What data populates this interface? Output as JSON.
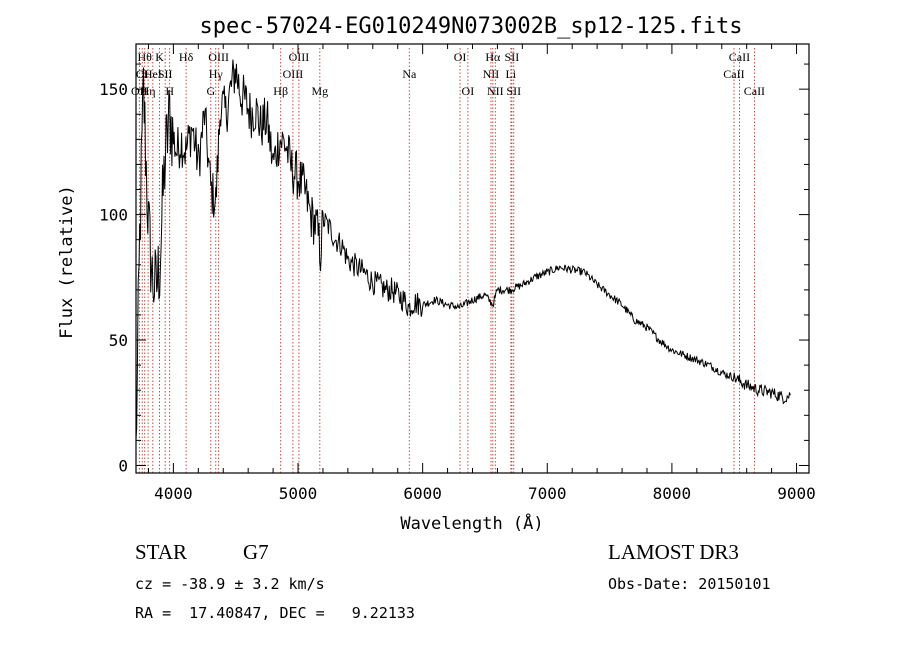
{
  "chart_data": {
    "type": "line",
    "title": "spec-57024-EG010249N073002B_sp12-125.fits",
    "xlabel": "Wavelength (Å)",
    "ylabel": "Flux (relative)",
    "xlim": [
      3700,
      9100
    ],
    "ylim": [
      -3,
      168
    ],
    "xticks": [
      4000,
      5000,
      6000,
      7000,
      8000,
      9000
    ],
    "yticks": [
      0,
      50,
      100,
      150
    ],
    "series": [
      {
        "name": "flux",
        "x": [
          3700,
          3730,
          3760,
          3800,
          3830,
          3860,
          3890,
          3930,
          3970,
          4000,
          4030,
          4060,
          4100,
          4150,
          4200,
          4250,
          4300,
          4340,
          4380,
          4420,
          4460,
          4500,
          4540,
          4580,
          4620,
          4660,
          4700,
          4750,
          4800,
          4850,
          4900,
          4950,
          5000,
          5050,
          5100,
          5150,
          5180,
          5200,
          5250,
          5300,
          5350,
          5400,
          5450,
          5500,
          5550,
          5600,
          5650,
          5700,
          5750,
          5800,
          5850,
          5890,
          5930,
          6000,
          6100,
          6200,
          6300,
          6400,
          6500,
          6563,
          6600,
          6700,
          6800,
          6900,
          7000,
          7100,
          7200,
          7300,
          7400,
          7500,
          7600,
          7700,
          7800,
          7900,
          8000,
          8100,
          8200,
          8300,
          8400,
          8500,
          8600,
          8700,
          8800,
          8900,
          8950
        ],
        "y": [
          5,
          90,
          150,
          95,
          75,
          70,
          80,
          120,
          140,
          130,
          125,
          130,
          125,
          135,
          120,
          140,
          110,
          105,
          145,
          140,
          150,
          158,
          148,
          145,
          140,
          142,
          135,
          138,
          120,
          130,
          128,
          118,
          115,
          110,
          100,
          95,
          85,
          98,
          95,
          90,
          88,
          82,
          80,
          78,
          76,
          73,
          72,
          70,
          70,
          68,
          66,
          63,
          65,
          64,
          66,
          64,
          63,
          66,
          68,
          64,
          70,
          70,
          72,
          75,
          77,
          79,
          78,
          77,
          72,
          68,
          64,
          58,
          55,
          50,
          46,
          44,
          42,
          40,
          37,
          35,
          32,
          30,
          29,
          27,
          28
        ]
      }
    ],
    "lines": [
      {
        "wl": 3727,
        "labels": [
          "OII"
        ],
        "row": 3
      },
      {
        "wl": 3750,
        "labels": [
          "OI"
        ],
        "row": 2
      },
      {
        "wl": 3770,
        "labels": [
          "Hθ"
        ],
        "row": 1
      },
      {
        "wl": 3797,
        "labels": [
          "Hη"
        ],
        "row": 3
      },
      {
        "wl": 3835,
        "labels": [
          "HeI"
        ],
        "row": 2
      },
      {
        "wl": 3889,
        "labels": [
          "K"
        ],
        "row": 1
      },
      {
        "wl": 3934,
        "labels": [
          "SII"
        ],
        "row": 2
      },
      {
        "wl": 3970,
        "labels": [
          "H"
        ],
        "row": 3
      },
      {
        "wl": 4102,
        "labels": [
          "Hδ"
        ],
        "row": 1
      },
      {
        "wl": 4300,
        "labels": [
          "G"
        ],
        "row": 3
      },
      {
        "wl": 4340,
        "labels": [
          "Hγ"
        ],
        "row": 2
      },
      {
        "wl": 4363,
        "labels": [
          "OIII"
        ],
        "row": 1
      },
      {
        "wl": 4861,
        "labels": [
          "Hβ"
        ],
        "row": 3
      },
      {
        "wl": 4959,
        "labels": [
          "OIII"
        ],
        "row": 2
      },
      {
        "wl": 5007,
        "labels": [
          "OIII"
        ],
        "row": 1
      },
      {
        "wl": 5175,
        "labels": [
          "Mg"
        ],
        "row": 3
      },
      {
        "wl": 5893,
        "labels": [
          "Na"
        ],
        "row": 2
      },
      {
        "wl": 6300,
        "labels": [
          "OI"
        ],
        "row": 1
      },
      {
        "wl": 6363,
        "labels": [
          "OI"
        ],
        "row": 3
      },
      {
        "wl": 6548,
        "labels": [
          "NII"
        ],
        "row": 2
      },
      {
        "wl": 6563,
        "labels": [
          "Hα"
        ],
        "row": 1
      },
      {
        "wl": 6583,
        "labels": [
          "NII"
        ],
        "row": 3
      },
      {
        "wl": 6708,
        "labels": [
          "Li"
        ],
        "row": 2
      },
      {
        "wl": 6716,
        "labels": [
          "SII"
        ],
        "row": 1
      },
      {
        "wl": 6731,
        "labels": [
          "SII"
        ],
        "row": 3
      },
      {
        "wl": 8498,
        "labels": [
          "CaII"
        ],
        "row": 2
      },
      {
        "wl": 8542,
        "labels": [
          "CaII"
        ],
        "row": 1
      },
      {
        "wl": 8662,
        "labels": [
          "CaII"
        ],
        "row": 3
      }
    ]
  },
  "info": {
    "class": "STAR",
    "subclass": "G7",
    "survey": "LAMOST DR3",
    "redshift": "cz = -38.9 ± 3.2 km/s",
    "obs_date": "Obs-Date: 20150101",
    "coords": "RA =  17.40847, DEC =   9.22133"
  }
}
